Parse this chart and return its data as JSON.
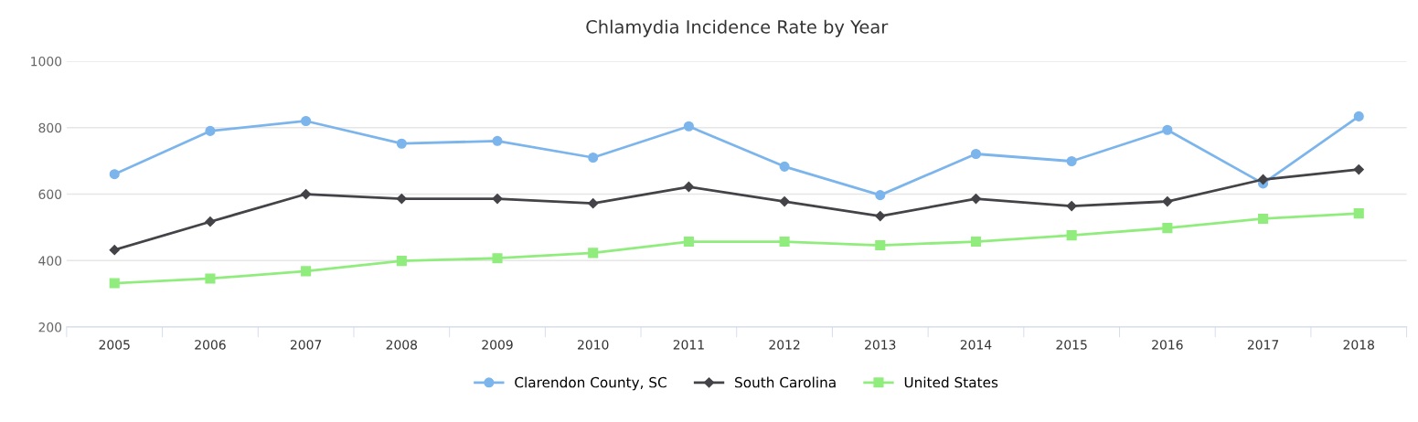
{
  "chart_data": {
    "type": "line",
    "title": "Chlamydia Incidence Rate by Year",
    "categories": [
      "2005",
      "2006",
      "2007",
      "2008",
      "2009",
      "2010",
      "2011",
      "2012",
      "2013",
      "2014",
      "2015",
      "2016",
      "2017",
      "2018"
    ],
    "series": [
      {
        "name": "Clarendon County, SC",
        "color": "#7cb5ec",
        "marker": "circle",
        "values": [
          660,
          790,
          820,
          752,
          760,
          710,
          804,
          683,
          597,
          721,
          699,
          793,
          632,
          834
        ]
      },
      {
        "name": "South Carolina",
        "color": "#434348",
        "marker": "diamond",
        "values": [
          432,
          517,
          600,
          586,
          586,
          572,
          622,
          578,
          534,
          586,
          564,
          578,
          644,
          674
        ]
      },
      {
        "name": "United States",
        "color": "#90ed7d",
        "marker": "square",
        "values": [
          332,
          346,
          368,
          399,
          407,
          423,
          457,
          457,
          446,
          457,
          476,
          498,
          526,
          542
        ]
      }
    ],
    "ylim": [
      200,
      1000
    ],
    "yticks": [
      200,
      400,
      600,
      800,
      1000
    ],
    "grid": "y",
    "legend": "bottom"
  }
}
